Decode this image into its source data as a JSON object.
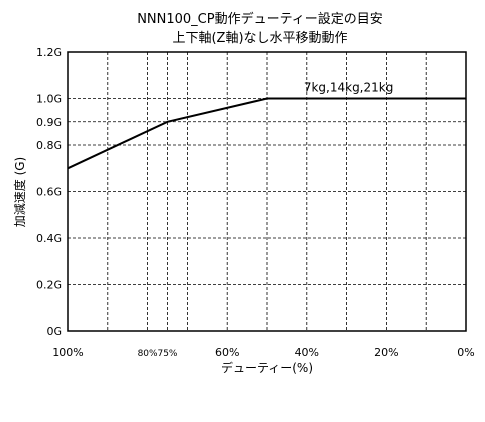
{
  "chart_data": {
    "type": "line",
    "title": "NNN100_CP動作デューティー設定の目安",
    "subtitle": "上下軸(Z軸)なし水平移動動作",
    "xlabel": "デューティー(%)",
    "ylabel": "加減速度 (G)",
    "x_reversed": true,
    "xlim": [
      100,
      0
    ],
    "ylim": [
      0,
      1.2
    ],
    "grid": true,
    "x_gridlines": [
      100,
      90,
      80,
      75,
      70,
      60,
      50,
      40,
      30,
      20,
      10,
      0
    ],
    "y_gridlines": [
      0,
      0.2,
      0.4,
      0.6,
      0.8,
      0.9,
      1.0,
      1.2
    ],
    "x_ticks": [
      {
        "value": 100,
        "label": "100%"
      },
      {
        "value": 80,
        "label": "80%",
        "small": true
      },
      {
        "value": 75,
        "label": "75%",
        "small": true
      },
      {
        "value": 60,
        "label": "60%"
      },
      {
        "value": 40,
        "label": "40%"
      },
      {
        "value": 20,
        "label": "20%"
      },
      {
        "value": 0,
        "label": "0%"
      }
    ],
    "y_ticks": [
      {
        "value": 0,
        "label": "0G"
      },
      {
        "value": 0.2,
        "label": "0.2G"
      },
      {
        "value": 0.4,
        "label": "0.4G"
      },
      {
        "value": 0.6,
        "label": "0.6G"
      },
      {
        "value": 0.8,
        "label": "0.8G"
      },
      {
        "value": 0.9,
        "label": "0.9G"
      },
      {
        "value": 1.0,
        "label": "1.0G"
      },
      {
        "value": 1.2,
        "label": "1.2G"
      }
    ],
    "series": [
      {
        "points": [
          {
            "x": 100,
            "y": 0.7
          },
          {
            "x": 75,
            "y": 0.9
          },
          {
            "x": 50,
            "y": 1.0
          },
          {
            "x": 0,
            "y": 1.0
          }
        ]
      }
    ],
    "annotations": [
      {
        "text": "7kg,14kg,21kg",
        "x": 30,
        "y": 1.0
      }
    ]
  }
}
